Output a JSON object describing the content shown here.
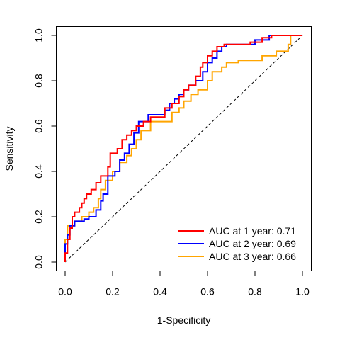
{
  "chart_data": {
    "type": "line",
    "title": "",
    "xlabel": "1-Specificity",
    "ylabel": "Sensitivity",
    "xlim": [
      0,
      1
    ],
    "ylim": [
      0,
      1
    ],
    "xticks": [
      "0.0",
      "0.2",
      "0.4",
      "0.6",
      "0.8",
      "1.0"
    ],
    "yticks": [
      "0.0",
      "0.2",
      "0.4",
      "0.6",
      "0.8",
      "1.0"
    ],
    "grid": false,
    "legend_position": "bottom-right",
    "reference_line": {
      "style": "dashed",
      "color": "#000000",
      "from": [
        0,
        0
      ],
      "to": [
        1,
        1
      ]
    },
    "series": [
      {
        "name": "AUC at 1 year: 0.71",
        "color": "#ff0000",
        "points": [
          [
            0,
            0
          ],
          [
            0,
            0.04
          ],
          [
            0.01,
            0.04
          ],
          [
            0.01,
            0.1
          ],
          [
            0.02,
            0.1
          ],
          [
            0.02,
            0.15
          ],
          [
            0.03,
            0.15
          ],
          [
            0.03,
            0.2
          ],
          [
            0.04,
            0.2
          ],
          [
            0.04,
            0.22
          ],
          [
            0.06,
            0.22
          ],
          [
            0.06,
            0.24
          ],
          [
            0.07,
            0.24
          ],
          [
            0.07,
            0.26
          ],
          [
            0.08,
            0.26
          ],
          [
            0.08,
            0.28
          ],
          [
            0.09,
            0.28
          ],
          [
            0.09,
            0.3
          ],
          [
            0.11,
            0.3
          ],
          [
            0.11,
            0.32
          ],
          [
            0.13,
            0.32
          ],
          [
            0.13,
            0.35
          ],
          [
            0.15,
            0.35
          ],
          [
            0.15,
            0.38
          ],
          [
            0.18,
            0.38
          ],
          [
            0.18,
            0.42
          ],
          [
            0.19,
            0.42
          ],
          [
            0.19,
            0.48
          ],
          [
            0.22,
            0.48
          ],
          [
            0.22,
            0.5
          ],
          [
            0.24,
            0.5
          ],
          [
            0.24,
            0.54
          ],
          [
            0.26,
            0.54
          ],
          [
            0.26,
            0.56
          ],
          [
            0.28,
            0.56
          ],
          [
            0.28,
            0.58
          ],
          [
            0.3,
            0.58
          ],
          [
            0.3,
            0.6
          ],
          [
            0.33,
            0.6
          ],
          [
            0.33,
            0.62
          ],
          [
            0.36,
            0.62
          ],
          [
            0.36,
            0.64
          ],
          [
            0.42,
            0.64
          ],
          [
            0.42,
            0.68
          ],
          [
            0.45,
            0.68
          ],
          [
            0.45,
            0.7
          ],
          [
            0.48,
            0.7
          ],
          [
            0.48,
            0.73
          ],
          [
            0.5,
            0.73
          ],
          [
            0.5,
            0.76
          ],
          [
            0.52,
            0.76
          ],
          [
            0.52,
            0.78
          ],
          [
            0.55,
            0.78
          ],
          [
            0.55,
            0.82
          ],
          [
            0.57,
            0.82
          ],
          [
            0.57,
            0.86
          ],
          [
            0.58,
            0.86
          ],
          [
            0.58,
            0.88
          ],
          [
            0.6,
            0.88
          ],
          [
            0.6,
            0.91
          ],
          [
            0.62,
            0.91
          ],
          [
            0.62,
            0.93
          ],
          [
            0.64,
            0.93
          ],
          [
            0.64,
            0.95
          ],
          [
            0.67,
            0.95
          ],
          [
            0.67,
            0.96
          ],
          [
            0.78,
            0.96
          ],
          [
            0.78,
            0.97
          ],
          [
            0.83,
            0.97
          ],
          [
            0.83,
            0.99
          ],
          [
            0.87,
            0.99
          ],
          [
            0.87,
            1.0
          ],
          [
            1.0,
            1.0
          ]
        ]
      },
      {
        "name": "AUC at 2 year: 0.69",
        "color": "#0000ff",
        "points": [
          [
            0,
            0
          ],
          [
            0,
            0.08
          ],
          [
            0.01,
            0.08
          ],
          [
            0.01,
            0.12
          ],
          [
            0.02,
            0.12
          ],
          [
            0.02,
            0.16
          ],
          [
            0.04,
            0.16
          ],
          [
            0.04,
            0.18
          ],
          [
            0.08,
            0.18
          ],
          [
            0.08,
            0.19
          ],
          [
            0.1,
            0.19
          ],
          [
            0.1,
            0.2
          ],
          [
            0.13,
            0.2
          ],
          [
            0.13,
            0.23
          ],
          [
            0.15,
            0.23
          ],
          [
            0.15,
            0.27
          ],
          [
            0.16,
            0.27
          ],
          [
            0.16,
            0.3
          ],
          [
            0.18,
            0.3
          ],
          [
            0.18,
            0.38
          ],
          [
            0.21,
            0.38
          ],
          [
            0.21,
            0.4
          ],
          [
            0.23,
            0.4
          ],
          [
            0.23,
            0.45
          ],
          [
            0.25,
            0.45
          ],
          [
            0.25,
            0.48
          ],
          [
            0.27,
            0.48
          ],
          [
            0.27,
            0.52
          ],
          [
            0.29,
            0.52
          ],
          [
            0.29,
            0.57
          ],
          [
            0.31,
            0.57
          ],
          [
            0.31,
            0.62
          ],
          [
            0.35,
            0.62
          ],
          [
            0.35,
            0.65
          ],
          [
            0.42,
            0.65
          ],
          [
            0.42,
            0.67
          ],
          [
            0.44,
            0.67
          ],
          [
            0.44,
            0.7
          ],
          [
            0.46,
            0.7
          ],
          [
            0.46,
            0.72
          ],
          [
            0.48,
            0.72
          ],
          [
            0.48,
            0.74
          ],
          [
            0.5,
            0.74
          ],
          [
            0.5,
            0.76
          ],
          [
            0.52,
            0.76
          ],
          [
            0.52,
            0.78
          ],
          [
            0.55,
            0.78
          ],
          [
            0.55,
            0.8
          ],
          [
            0.58,
            0.8
          ],
          [
            0.58,
            0.84
          ],
          [
            0.6,
            0.84
          ],
          [
            0.6,
            0.88
          ],
          [
            0.62,
            0.88
          ],
          [
            0.62,
            0.9
          ],
          [
            0.64,
            0.9
          ],
          [
            0.64,
            0.93
          ],
          [
            0.66,
            0.93
          ],
          [
            0.66,
            0.95
          ],
          [
            0.68,
            0.95
          ],
          [
            0.68,
            0.96
          ],
          [
            0.8,
            0.96
          ],
          [
            0.8,
            0.98
          ],
          [
            0.86,
            0.98
          ],
          [
            0.86,
            1.0
          ],
          [
            1.0,
            1.0
          ]
        ]
      },
      {
        "name": "AUC at 3 year: 0.66",
        "color": "#ffa500",
        "points": [
          [
            0,
            0
          ],
          [
            0,
            0.1
          ],
          [
            0.01,
            0.1
          ],
          [
            0.01,
            0.16
          ],
          [
            0.04,
            0.16
          ],
          [
            0.04,
            0.18
          ],
          [
            0.07,
            0.18
          ],
          [
            0.07,
            0.2
          ],
          [
            0.1,
            0.2
          ],
          [
            0.1,
            0.22
          ],
          [
            0.12,
            0.22
          ],
          [
            0.12,
            0.24
          ],
          [
            0.14,
            0.24
          ],
          [
            0.14,
            0.28
          ],
          [
            0.15,
            0.28
          ],
          [
            0.15,
            0.32
          ],
          [
            0.17,
            0.32
          ],
          [
            0.17,
            0.36
          ],
          [
            0.2,
            0.36
          ],
          [
            0.2,
            0.4
          ],
          [
            0.23,
            0.4
          ],
          [
            0.23,
            0.44
          ],
          [
            0.26,
            0.44
          ],
          [
            0.26,
            0.47
          ],
          [
            0.28,
            0.47
          ],
          [
            0.28,
            0.5
          ],
          [
            0.3,
            0.5
          ],
          [
            0.3,
            0.54
          ],
          [
            0.32,
            0.54
          ],
          [
            0.32,
            0.58
          ],
          [
            0.36,
            0.58
          ],
          [
            0.36,
            0.62
          ],
          [
            0.45,
            0.62
          ],
          [
            0.45,
            0.66
          ],
          [
            0.48,
            0.66
          ],
          [
            0.48,
            0.68
          ],
          [
            0.5,
            0.68
          ],
          [
            0.5,
            0.71
          ],
          [
            0.53,
            0.71
          ],
          [
            0.53,
            0.74
          ],
          [
            0.56,
            0.74
          ],
          [
            0.56,
            0.76
          ],
          [
            0.6,
            0.76
          ],
          [
            0.6,
            0.8
          ],
          [
            0.62,
            0.8
          ],
          [
            0.62,
            0.84
          ],
          [
            0.66,
            0.84
          ],
          [
            0.66,
            0.86
          ],
          [
            0.68,
            0.86
          ],
          [
            0.68,
            0.88
          ],
          [
            0.73,
            0.88
          ],
          [
            0.73,
            0.89
          ],
          [
            0.83,
            0.89
          ],
          [
            0.83,
            0.91
          ],
          [
            0.89,
            0.91
          ],
          [
            0.89,
            0.93
          ],
          [
            0.94,
            0.93
          ],
          [
            0.94,
            0.96
          ],
          [
            0.95,
            0.96
          ],
          [
            0.95,
            1.0
          ],
          [
            1.0,
            1.0
          ]
        ]
      }
    ]
  }
}
